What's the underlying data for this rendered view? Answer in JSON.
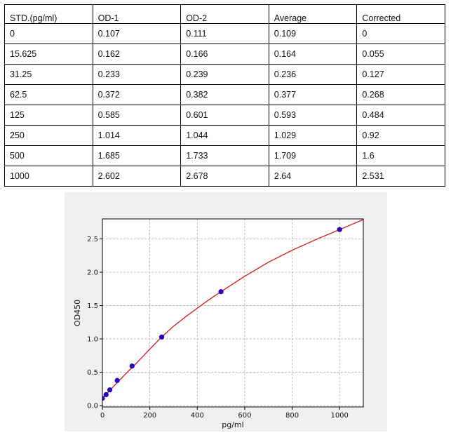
{
  "table": {
    "headers": [
      "STD.(pg/ml)",
      "OD-1",
      "OD-2",
      "Average",
      "Corrected"
    ],
    "rows": [
      [
        "0",
        "0.107",
        "0.111",
        "0.109",
        "0"
      ],
      [
        "15.625",
        "0.162",
        "0.166",
        "0.164",
        "0.055"
      ],
      [
        "31.25",
        "0.233",
        "0.239",
        "0.236",
        "0.127"
      ],
      [
        "62.5",
        "0.372",
        "0.382",
        "0.377",
        "0.268"
      ],
      [
        "125",
        "0.585",
        "0.601",
        "0.593",
        "0.484"
      ],
      [
        "250",
        "1.014",
        "1.044",
        "1.029",
        "0.92"
      ],
      [
        "500",
        "1.685",
        "1.733",
        "1.709",
        "1.6"
      ],
      [
        "1000",
        "2.602",
        "2.678",
        "2.64",
        "2.531"
      ]
    ]
  },
  "chart_data": {
    "type": "scatter",
    "title": "",
    "xlabel": "pg/ml",
    "ylabel": "OD450",
    "xlim": [
      0,
      1100
    ],
    "ylim": [
      -0.02,
      2.8
    ],
    "xticks": [
      "0",
      "200",
      "400",
      "600",
      "800",
      "1000"
    ],
    "xtick_values": [
      0,
      200,
      400,
      600,
      800,
      1000
    ],
    "yticks": [
      "0.0",
      "0.5",
      "1.0",
      "1.5",
      "2.0",
      "2.5"
    ],
    "ytick_values": [
      0,
      0.5,
      1.0,
      1.5,
      2.0,
      2.5
    ],
    "grid": true,
    "points": {
      "x": [
        0,
        15.625,
        31.25,
        62.5,
        125,
        250,
        500,
        1000
      ],
      "y": [
        0.109,
        0.164,
        0.236,
        0.377,
        0.593,
        1.029,
        1.709,
        2.64
      ]
    },
    "curve": {
      "x": [
        0,
        25,
        50,
        75,
        100,
        150,
        200,
        250,
        300,
        350,
        400,
        450,
        500,
        600,
        700,
        800,
        900,
        1000,
        1100
      ],
      "y": [
        0.109,
        0.205,
        0.3,
        0.392,
        0.483,
        0.66,
        0.848,
        1.029,
        1.19,
        1.33,
        1.46,
        1.59,
        1.709,
        1.94,
        2.15,
        2.33,
        2.49,
        2.64,
        2.79
      ]
    },
    "colors": {
      "curve": "#d62728",
      "points": "#2a00cc",
      "grid": "#b0b0b0",
      "background": "#f0f0f0",
      "plot_area": "#ffffff"
    }
  }
}
